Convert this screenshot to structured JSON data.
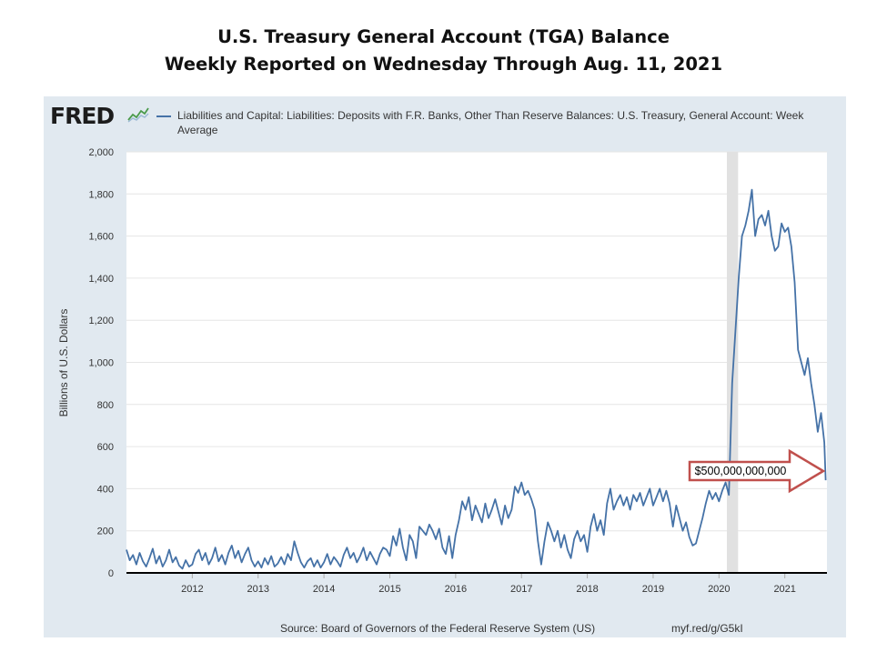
{
  "slide": {
    "title_line1": "U.S. Treasury General Account (TGA) Balance",
    "title_line2": "Weekly Reported on Wednesday Through Aug. 11, 2021"
  },
  "fred": {
    "logo": "FRED",
    "logo_icon": "line-graph-icon",
    "source": "Source: Board of Governors of the Federal Reserve System (US)",
    "link": "myf.red/g/G5kI"
  },
  "callout": {
    "label": "$500,000,000,000",
    "border_color": "#c0504d"
  },
  "chart_data": {
    "type": "line",
    "title": "",
    "xlabel": "",
    "ylabel": "Billions of U.S. Dollars",
    "xlim": [
      2011.0,
      2021.64
    ],
    "ylim": [
      0,
      2000
    ],
    "yticks": [
      0,
      200,
      400,
      600,
      800,
      1000,
      1200,
      1400,
      1600,
      1800,
      2000
    ],
    "ytick_labels": [
      "0",
      "200",
      "400",
      "600",
      "800",
      "1,000",
      "1,200",
      "1,400",
      "1,600",
      "1,800",
      "2,000"
    ],
    "xticks": [
      2012,
      2013,
      2014,
      2015,
      2016,
      2017,
      2018,
      2019,
      2020,
      2021
    ],
    "xtick_labels": [
      "2012",
      "2013",
      "2014",
      "2015",
      "2016",
      "2017",
      "2018",
      "2019",
      "2020",
      "2021"
    ],
    "grid": true,
    "legend_position": "top",
    "line_color": "#4572a7",
    "recession_shading": [
      {
        "start": 2020.12,
        "end": 2020.29
      }
    ],
    "series": [
      {
        "name": "Liabilities and Capital: Liabilities: Deposits with F.R. Banks, Other Than Reserve Balances: U.S. Treasury, General Account: Week Average",
        "x": [
          2011.0,
          2011.05,
          2011.1,
          2011.15,
          2011.2,
          2011.25,
          2011.3,
          2011.35,
          2011.4,
          2011.45,
          2011.5,
          2011.55,
          2011.6,
          2011.65,
          2011.7,
          2011.75,
          2011.8,
          2011.85,
          2011.9,
          2011.95,
          2012.0,
          2012.05,
          2012.1,
          2012.15,
          2012.2,
          2012.25,
          2012.3,
          2012.35,
          2012.4,
          2012.45,
          2012.5,
          2012.55,
          2012.6,
          2012.65,
          2012.7,
          2012.75,
          2012.8,
          2012.85,
          2012.9,
          2012.95,
          2013.0,
          2013.05,
          2013.1,
          2013.15,
          2013.2,
          2013.25,
          2013.3,
          2013.35,
          2013.4,
          2013.45,
          2013.5,
          2013.55,
          2013.6,
          2013.65,
          2013.7,
          2013.75,
          2013.8,
          2013.85,
          2013.9,
          2013.95,
          2014.0,
          2014.05,
          2014.1,
          2014.15,
          2014.2,
          2014.25,
          2014.3,
          2014.35,
          2014.4,
          2014.45,
          2014.5,
          2014.55,
          2014.6,
          2014.65,
          2014.7,
          2014.75,
          2014.8,
          2014.85,
          2014.9,
          2014.95,
          2015.0,
          2015.05,
          2015.1,
          2015.15,
          2015.2,
          2015.25,
          2015.3,
          2015.35,
          2015.4,
          2015.45,
          2015.5,
          2015.55,
          2015.6,
          2015.65,
          2015.7,
          2015.75,
          2015.8,
          2015.85,
          2015.9,
          2015.95,
          2016.0,
          2016.05,
          2016.1,
          2016.15,
          2016.2,
          2016.25,
          2016.3,
          2016.35,
          2016.4,
          2016.45,
          2016.5,
          2016.55,
          2016.6,
          2016.65,
          2016.7,
          2016.75,
          2016.8,
          2016.85,
          2016.9,
          2016.95,
          2017.0,
          2017.05,
          2017.1,
          2017.15,
          2017.2,
          2017.25,
          2017.3,
          2017.35,
          2017.4,
          2017.45,
          2017.5,
          2017.55,
          2017.6,
          2017.65,
          2017.7,
          2017.75,
          2017.8,
          2017.85,
          2017.9,
          2017.95,
          2018.0,
          2018.05,
          2018.1,
          2018.15,
          2018.2,
          2018.25,
          2018.3,
          2018.35,
          2018.4,
          2018.45,
          2018.5,
          2018.55,
          2018.6,
          2018.65,
          2018.7,
          2018.75,
          2018.8,
          2018.85,
          2018.9,
          2018.95,
          2019.0,
          2019.05,
          2019.1,
          2019.15,
          2019.2,
          2019.25,
          2019.3,
          2019.35,
          2019.4,
          2019.45,
          2019.5,
          2019.55,
          2019.6,
          2019.65,
          2019.7,
          2019.75,
          2019.8,
          2019.85,
          2019.9,
          2019.95,
          2020.0,
          2020.05,
          2020.1,
          2020.15,
          2020.2,
          2020.25,
          2020.3,
          2020.35,
          2020.4,
          2020.45,
          2020.5,
          2020.55,
          2020.6,
          2020.65,
          2020.7,
          2020.75,
          2020.8,
          2020.85,
          2020.9,
          2020.95,
          2021.0,
          2021.05,
          2021.1,
          2021.15,
          2021.2,
          2021.25,
          2021.3,
          2021.35,
          2021.4,
          2021.45,
          2021.5,
          2021.55,
          2021.6,
          2021.62
        ],
        "y": [
          110,
          60,
          85,
          40,
          95,
          55,
          30,
          70,
          115,
          45,
          80,
          30,
          60,
          110,
          50,
          75,
          35,
          20,
          60,
          30,
          40,
          90,
          110,
          60,
          95,
          40,
          70,
          120,
          55,
          85,
          40,
          95,
          130,
          70,
          105,
          50,
          90,
          120,
          60,
          30,
          55,
          25,
          70,
          40,
          80,
          30,
          45,
          75,
          40,
          90,
          60,
          150,
          95,
          50,
          25,
          55,
          70,
          30,
          60,
          25,
          50,
          90,
          40,
          75,
          55,
          30,
          85,
          120,
          70,
          95,
          50,
          80,
          120,
          60,
          100,
          70,
          40,
          90,
          120,
          110,
          80,
          175,
          130,
          210,
          120,
          60,
          180,
          150,
          70,
          220,
          200,
          180,
          230,
          200,
          160,
          210,
          120,
          90,
          175,
          70,
          180,
          250,
          340,
          300,
          360,
          250,
          320,
          280,
          240,
          330,
          260,
          300,
          350,
          290,
          230,
          320,
          260,
          300,
          410,
          380,
          430,
          370,
          390,
          350,
          300,
          150,
          40,
          150,
          240,
          200,
          150,
          200,
          120,
          180,
          110,
          70,
          160,
          200,
          150,
          180,
          100,
          220,
          280,
          200,
          250,
          180,
          330,
          400,
          300,
          340,
          370,
          320,
          360,
          300,
          370,
          340,
          380,
          320,
          360,
          400,
          320,
          360,
          400,
          340,
          390,
          330,
          220,
          320,
          260,
          200,
          240,
          170,
          130,
          140,
          200,
          260,
          330,
          390,
          350,
          380,
          340,
          390,
          430,
          370,
          900,
          1150,
          1400,
          1600,
          1650,
          1720,
          1820,
          1600,
          1680,
          1700,
          1650,
          1720,
          1600,
          1530,
          1550,
          1660,
          1620,
          1640,
          1550,
          1380,
          1060,
          1000,
          940,
          1020,
          900,
          800,
          670,
          760,
          620,
          440
        ]
      }
    ]
  }
}
